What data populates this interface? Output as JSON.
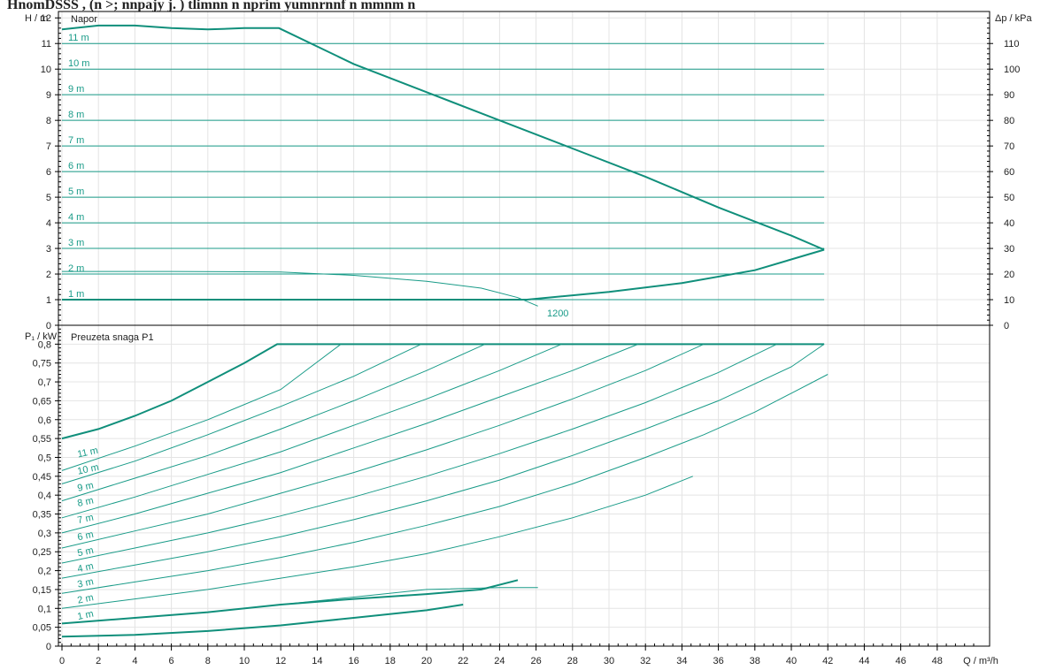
{
  "header_fragment": "HnomDSSS  , (n   >;   nnpajy  j. ) tlimnn  n  nprim yumnrnnf n   mmnm  n",
  "colors": {
    "curve": "#199b88",
    "curve_bold": "#108f7b",
    "line_label": "#199b88",
    "frame": "#000000",
    "grid": "#e4e4e4"
  },
  "chart_data": [
    {
      "type": "line",
      "panel": "head",
      "title": "Napor",
      "ylabel": "H / m",
      "ylabel_right": "Δp / kPa",
      "xlim": [
        0,
        50
      ],
      "ylim": [
        0,
        12.25
      ],
      "yticks": [
        "0",
        "1",
        "2",
        "3",
        "4",
        "5",
        "6",
        "7",
        "8",
        "9",
        "10",
        "11",
        "12"
      ],
      "yticks_right": [
        "0",
        "10",
        "20",
        "30",
        "40",
        "50",
        "60",
        "70",
        "80",
        "90",
        "100",
        "110"
      ],
      "grid": true,
      "constant_head_lines": [
        {
          "label": "1 m",
          "y": 1
        },
        {
          "label": "2 m",
          "y": 2
        },
        {
          "label": "3 m",
          "y": 3
        },
        {
          "label": "4 m",
          "y": 4
        },
        {
          "label": "5 m",
          "y": 5
        },
        {
          "label": "6 m",
          "y": 6
        },
        {
          "label": "7 m",
          "y": 7
        },
        {
          "label": "8 m",
          "y": 8
        },
        {
          "label": "9 m",
          "y": 9
        },
        {
          "label": "10 m",
          "y": 10
        },
        {
          "label": "11 m",
          "y": 11
        }
      ],
      "series": [
        {
          "bold": true,
          "points": [
            [
              0,
              11.55
            ],
            [
              2,
              11.7
            ],
            [
              4,
              11.7
            ],
            [
              6,
              11.6
            ],
            [
              8,
              11.55
            ],
            [
              10,
              11.6
            ],
            [
              11.9,
              11.6
            ],
            [
              16,
              10.2
            ],
            [
              20,
              9.1
            ],
            [
              24,
              8.0
            ],
            [
              28,
              6.9
            ],
            [
              32,
              5.8
            ],
            [
              36,
              4.6
            ],
            [
              40,
              3.5
            ],
            [
              41.8,
              2.95
            ]
          ]
        },
        {
          "bold": true,
          "points": [
            [
              0,
              1.0
            ],
            [
              25.5,
              1.0
            ],
            [
              30,
              1.3
            ],
            [
              34,
              1.65
            ],
            [
              38,
              2.15
            ],
            [
              41.8,
              2.95
            ]
          ]
        },
        {
          "bold": false,
          "label": "1200",
          "label_at": [
            26.6,
            0.35
          ],
          "points": [
            [
              0,
              2.1
            ],
            [
              6,
              2.1
            ],
            [
              12,
              2.08
            ],
            [
              16,
              1.95
            ],
            [
              20,
              1.72
            ],
            [
              23,
              1.45
            ],
            [
              25,
              1.08
            ],
            [
              26.1,
              0.75
            ]
          ]
        }
      ]
    },
    {
      "type": "line",
      "panel": "power",
      "title": "Preuzeta snaga P1",
      "ylabel": "P₁ / kW",
      "xlabel": "Q / m³/h",
      "xlim": [
        0,
        50
      ],
      "ylim": [
        0,
        0.85
      ],
      "xticks": [
        "0",
        "2",
        "4",
        "6",
        "8",
        "10",
        "12",
        "14",
        "16",
        "18",
        "20",
        "22",
        "24",
        "26",
        "28",
        "30",
        "32",
        "34",
        "36",
        "38",
        "40",
        "42",
        "44",
        "46",
        "48"
      ],
      "yticks": [
        "0",
        "0,05",
        "0,1",
        "0,15",
        "0,2",
        "0,25",
        "0,3",
        "0,35",
        "0,4",
        "0,45",
        "0,5",
        "0,55",
        "0,6",
        "0,65",
        "0,7",
        "0,75",
        "0,8"
      ],
      "grid": true,
      "series": [
        {
          "bold": true,
          "points": [
            [
              0,
              0.55
            ],
            [
              2,
              0.575
            ],
            [
              4,
              0.61
            ],
            [
              6,
              0.65
            ],
            [
              8,
              0.7
            ],
            [
              10,
              0.75
            ],
            [
              11.8,
              0.8
            ],
            [
              41.8,
              0.8
            ]
          ]
        },
        {
          "bold": false,
          "label": "11 m",
          "label_at": [
            0.4,
            0.5
          ],
          "points": [
            [
              0,
              0.465
            ],
            [
              4,
              0.53
            ],
            [
              8,
              0.6
            ],
            [
              12,
              0.68
            ],
            [
              15.3,
              0.8
            ]
          ]
        },
        {
          "bold": false,
          "label": "10 m",
          "label_at": [
            0.4,
            0.455
          ],
          "points": [
            [
              0,
              0.43
            ],
            [
              4,
              0.49
            ],
            [
              8,
              0.56
            ],
            [
              12,
              0.635
            ],
            [
              16,
              0.715
            ],
            [
              19.7,
              0.8
            ]
          ]
        },
        {
          "bold": false,
          "label": "9 m",
          "label_at": [
            0.4,
            0.41
          ],
          "points": [
            [
              0,
              0.385
            ],
            [
              4,
              0.445
            ],
            [
              8,
              0.505
            ],
            [
              12,
              0.575
            ],
            [
              16,
              0.65
            ],
            [
              20,
              0.73
            ],
            [
              23.2,
              0.8
            ]
          ]
        },
        {
          "bold": false,
          "label": "8 m",
          "label_at": [
            0.4,
            0.37
          ],
          "points": [
            [
              0,
              0.34
            ],
            [
              4,
              0.395
            ],
            [
              8,
              0.455
            ],
            [
              12,
              0.515
            ],
            [
              16,
              0.585
            ],
            [
              20,
              0.655
            ],
            [
              24,
              0.73
            ],
            [
              27.4,
              0.8
            ]
          ]
        },
        {
          "bold": false,
          "label": "7 m",
          "label_at": [
            0.4,
            0.325
          ],
          "points": [
            [
              0,
              0.3
            ],
            [
              4,
              0.35
            ],
            [
              8,
              0.405
            ],
            [
              12,
              0.46
            ],
            [
              16,
              0.525
            ],
            [
              20,
              0.59
            ],
            [
              24,
              0.66
            ],
            [
              28,
              0.73
            ],
            [
              31.6,
              0.8
            ]
          ]
        },
        {
          "bold": false,
          "label": "6 m",
          "label_at": [
            0.4,
            0.28
          ],
          "points": [
            [
              0,
              0.26
            ],
            [
              4,
              0.305
            ],
            [
              8,
              0.35
            ],
            [
              12,
              0.405
            ],
            [
              16,
              0.46
            ],
            [
              20,
              0.52
            ],
            [
              24,
              0.585
            ],
            [
              28,
              0.655
            ],
            [
              32,
              0.73
            ],
            [
              35.2,
              0.8
            ]
          ]
        },
        {
          "bold": false,
          "label": "5 m",
          "label_at": [
            0.4,
            0.238
          ],
          "points": [
            [
              0,
              0.22
            ],
            [
              4,
              0.26
            ],
            [
              8,
              0.3
            ],
            [
              12,
              0.345
            ],
            [
              16,
              0.395
            ],
            [
              20,
              0.45
            ],
            [
              24,
              0.51
            ],
            [
              28,
              0.575
            ],
            [
              32,
              0.645
            ],
            [
              36,
              0.725
            ],
            [
              39.2,
              0.8
            ]
          ]
        },
        {
          "bold": false,
          "label": "4 m",
          "label_at": [
            0.4,
            0.196
          ],
          "points": [
            [
              0,
              0.18
            ],
            [
              4,
              0.215
            ],
            [
              8,
              0.25
            ],
            [
              12,
              0.29
            ],
            [
              16,
              0.335
            ],
            [
              20,
              0.385
            ],
            [
              24,
              0.44
            ],
            [
              28,
              0.505
            ],
            [
              32,
              0.575
            ],
            [
              36,
              0.65
            ],
            [
              40,
              0.74
            ],
            [
              41.8,
              0.8
            ]
          ]
        },
        {
          "bold": false,
          "label": "3 m",
          "label_at": [
            0.4,
            0.155
          ],
          "points": [
            [
              0,
              0.14
            ],
            [
              4,
              0.17
            ],
            [
              8,
              0.2
            ],
            [
              12,
              0.235
            ],
            [
              16,
              0.275
            ],
            [
              20,
              0.32
            ],
            [
              24,
              0.37
            ],
            [
              28,
              0.43
            ],
            [
              32,
              0.5
            ],
            [
              35.2,
              0.56
            ],
            [
              38,
              0.62
            ],
            [
              40,
              0.67
            ],
            [
              42,
              0.72
            ]
          ]
        },
        {
          "bold": false,
          "label": "2 m",
          "label_at": [
            0.4,
            0.113
          ],
          "points": [
            [
              0,
              0.1
            ],
            [
              4,
              0.125
            ],
            [
              8,
              0.15
            ],
            [
              12,
              0.18
            ],
            [
              16,
              0.21
            ],
            [
              20,
              0.245
            ],
            [
              24,
              0.29
            ],
            [
              28,
              0.34
            ],
            [
              32,
              0.4
            ],
            [
              34.6,
              0.45
            ]
          ]
        },
        {
          "bold": false,
          "label": "1 m",
          "label_at": [
            0.4,
            0.07
          ],
          "points": [
            [
              0,
              0.06
            ],
            [
              4,
              0.075
            ],
            [
              8,
              0.09
            ],
            [
              12,
              0.11
            ],
            [
              16,
              0.13
            ],
            [
              20,
              0.15
            ],
            [
              24,
              0.155
            ],
            [
              26.1,
              0.155
            ]
          ]
        },
        {
          "bold": true,
          "points": [
            [
              0,
              0.06
            ],
            [
              4,
              0.075
            ],
            [
              8,
              0.09
            ],
            [
              12,
              0.11
            ],
            [
              16,
              0.125
            ],
            [
              20,
              0.138
            ],
            [
              23,
              0.15
            ],
            [
              25,
              0.175
            ]
          ]
        },
        {
          "bold": true,
          "points": [
            [
              0,
              0.025
            ],
            [
              4,
              0.03
            ],
            [
              8,
              0.04
            ],
            [
              12,
              0.055
            ],
            [
              16,
              0.075
            ],
            [
              20,
              0.095
            ],
            [
              22,
              0.11
            ]
          ]
        }
      ]
    }
  ]
}
